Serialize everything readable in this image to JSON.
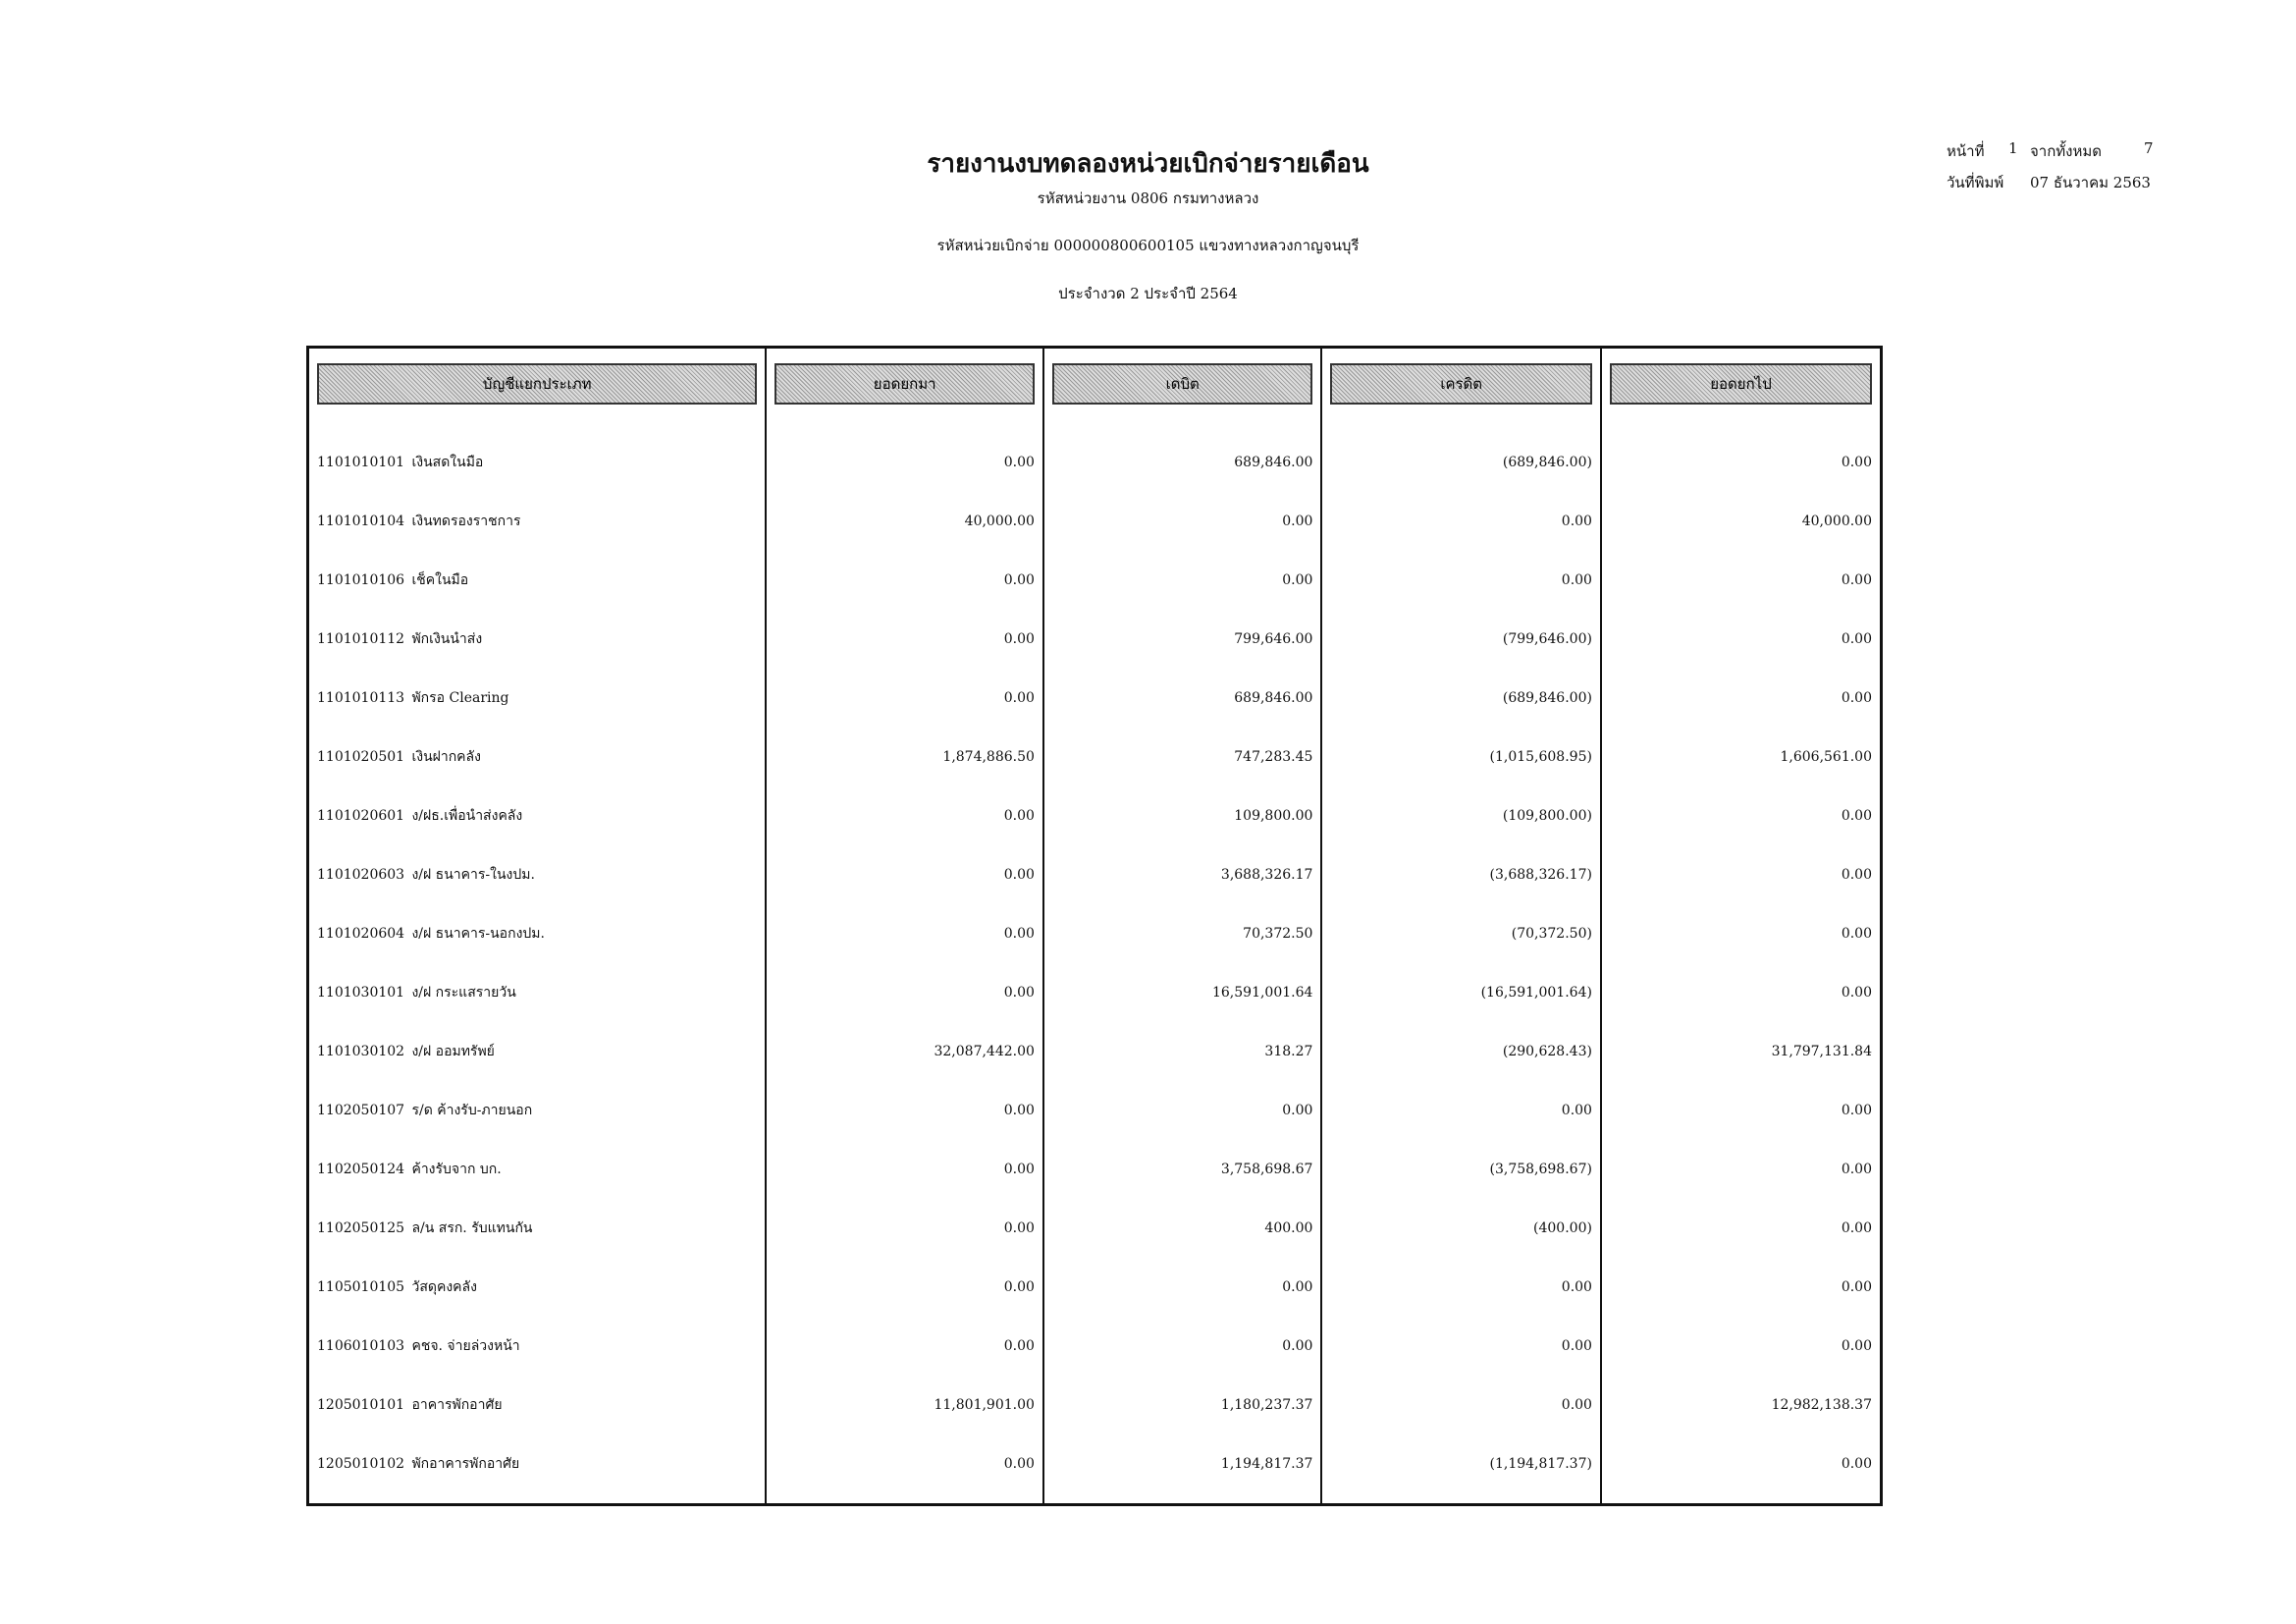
{
  "header": {
    "title": "รายงานงบทดลองหน่วยเบิกจ่ายรายเดือน",
    "agency": "รหัสหน่วยงาน 0806 กรมทางหลวง",
    "disbursing_unit": "รหัสหน่วยเบิกจ่าย 000000800600105 แขวงทางหลวงกาญจนบุรี",
    "period": "ประจำงวด 2 ประจำปี 2564",
    "page_label": "หน้าที่",
    "page": "1",
    "total_label": "จากทั้งหมด",
    "total_pages": "7",
    "print_date_label": "วันที่พิมพ์",
    "print_date": "07 ธันวาคม 2563"
  },
  "table": {
    "columns": [
      "บัญชีแยกประเภท",
      "ยอดยกมา",
      "เดบิต",
      "เครดิต",
      "ยอดยกไป"
    ],
    "rows": [
      {
        "code": "1101010101",
        "name": "เงินสดในมือ",
        "brought": "0.00",
        "debit": "689,846.00",
        "credit": "(689,846.00)",
        "carried": "0.00"
      },
      {
        "code": "1101010104",
        "name": "เงินทดรองราชการ",
        "brought": "40,000.00",
        "debit": "0.00",
        "credit": "0.00",
        "carried": "40,000.00"
      },
      {
        "code": "1101010106",
        "name": "เช็คในมือ",
        "brought": "0.00",
        "debit": "0.00",
        "credit": "0.00",
        "carried": "0.00"
      },
      {
        "code": "1101010112",
        "name": "พักเงินนำส่ง",
        "brought": "0.00",
        "debit": "799,646.00",
        "credit": "(799,646.00)",
        "carried": "0.00"
      },
      {
        "code": "1101010113",
        "name": "พักรอ Clearing",
        "brought": "0.00",
        "debit": "689,846.00",
        "credit": "(689,846.00)",
        "carried": "0.00"
      },
      {
        "code": "1101020501",
        "name": "เงินฝากคลัง",
        "brought": "1,874,886.50",
        "debit": "747,283.45",
        "credit": "(1,015,608.95)",
        "carried": "1,606,561.00"
      },
      {
        "code": "1101020601",
        "name": "ง/ฝธ.เพื่อนำส่งคลัง",
        "brought": "0.00",
        "debit": "109,800.00",
        "credit": "(109,800.00)",
        "carried": "0.00"
      },
      {
        "code": "1101020603",
        "name": "ง/ฝ ธนาคาร-ในงปม.",
        "brought": "0.00",
        "debit": "3,688,326.17",
        "credit": "(3,688,326.17)",
        "carried": "0.00"
      },
      {
        "code": "1101020604",
        "name": "ง/ฝ ธนาคาร-นอกงปม.",
        "brought": "0.00",
        "debit": "70,372.50",
        "credit": "(70,372.50)",
        "carried": "0.00"
      },
      {
        "code": "1101030101",
        "name": "ง/ฝ กระแสรายวัน",
        "brought": "0.00",
        "debit": "16,591,001.64",
        "credit": "(16,591,001.64)",
        "carried": "0.00"
      },
      {
        "code": "1101030102",
        "name": "ง/ฝ ออมทรัพย์",
        "brought": "32,087,442.00",
        "debit": "318.27",
        "credit": "(290,628.43)",
        "carried": "31,797,131.84"
      },
      {
        "code": "1102050107",
        "name": "ร/ด ค้างรับ-ภายนอก",
        "brought": "0.00",
        "debit": "0.00",
        "credit": "0.00",
        "carried": "0.00"
      },
      {
        "code": "1102050124",
        "name": "ค้างรับจาก บก.",
        "brought": "0.00",
        "debit": "3,758,698.67",
        "credit": "(3,758,698.67)",
        "carried": "0.00"
      },
      {
        "code": "1102050125",
        "name": "ล/น สรก. รับแทนกัน",
        "brought": "0.00",
        "debit": "400.00",
        "credit": "(400.00)",
        "carried": "0.00"
      },
      {
        "code": "1105010105",
        "name": "วัสดุคงคลัง",
        "brought": "0.00",
        "debit": "0.00",
        "credit": "0.00",
        "carried": "0.00"
      },
      {
        "code": "1106010103",
        "name": "คชจ. จ่ายล่วงหน้า",
        "brought": "0.00",
        "debit": "0.00",
        "credit": "0.00",
        "carried": "0.00"
      },
      {
        "code": "1205010101",
        "name": "อาคารพักอาศัย",
        "brought": "11,801,901.00",
        "debit": "1,180,237.37",
        "credit": "0.00",
        "carried": "12,982,138.37"
      },
      {
        "code": "1205010102",
        "name": "พักอาคารพักอาศัย",
        "brought": "0.00",
        "debit": "1,194,817.37",
        "credit": "(1,194,817.37)",
        "carried": "0.00"
      }
    ]
  }
}
